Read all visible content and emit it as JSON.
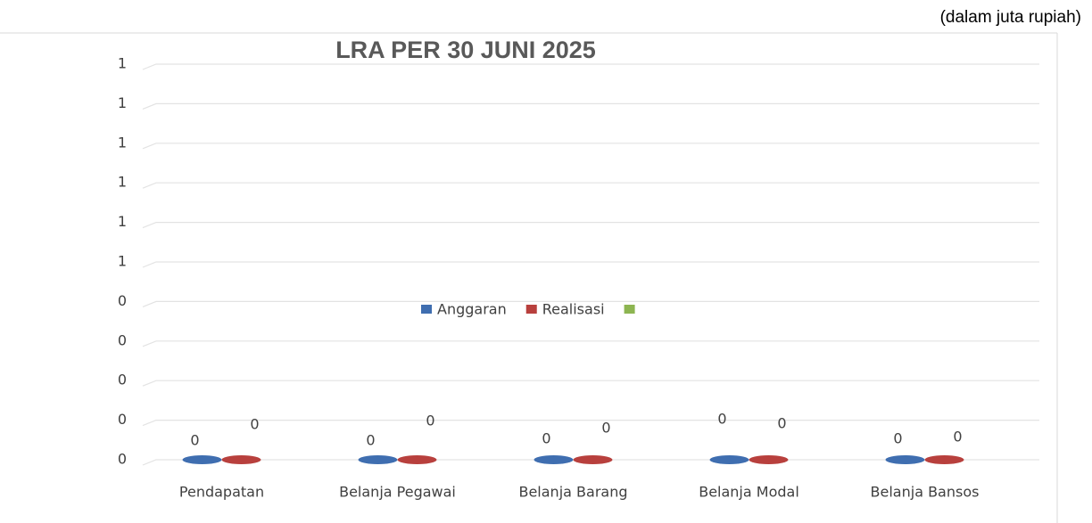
{
  "chart_data": {
    "type": "bar3d",
    "title": "LRA PER 30 JUNI 2025",
    "subtitle": "(dalam juta rupiah)",
    "categories": [
      "Pendapatan",
      "Belanja Pegawai",
      "Belanja Barang",
      "Belanja Modal",
      "Belanja Bansos"
    ],
    "series": [
      {
        "name": "Anggaran",
        "color": "#3f6eb0",
        "values": [
          0,
          0,
          0,
          0,
          0
        ]
      },
      {
        "name": "Realisasi",
        "color": "#b8403d",
        "values": [
          0,
          0,
          0,
          0,
          0
        ]
      },
      {
        "name": null,
        "color": "#8db551",
        "values": [
          null,
          null,
          null,
          null,
          null
        ]
      }
    ],
    "ylim": [
      0,
      1
    ],
    "yticks": [
      0,
      {
        "value": 0.1,
        "label": "0"
      },
      {
        "value": 0.2,
        "label": "0"
      },
      {
        "value": 0.3,
        "label": "0"
      },
      {
        "value": 0.4,
        "label": "0"
      },
      {
        "value": 0.5,
        "label": "1"
      },
      {
        "value": 0.6,
        "label": "1"
      },
      {
        "value": 0.7,
        "label": "1"
      },
      {
        "value": 0.8,
        "label": "1"
      },
      {
        "value": 0.9,
        "label": "1"
      },
      1
    ],
    "grid": true,
    "legend": "center"
  }
}
